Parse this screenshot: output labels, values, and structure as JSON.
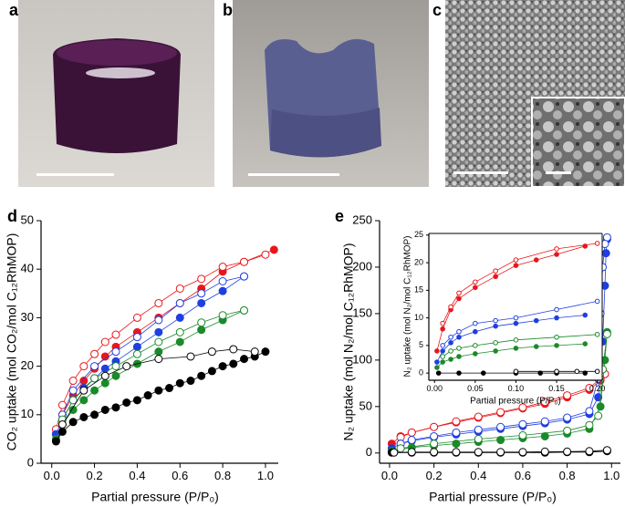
{
  "photos": {
    "labels": [
      "a",
      "b",
      "c"
    ]
  },
  "chart_data": [
    {
      "type": "line",
      "label": "d",
      "frame": "axes",
      "x_label": "Partial pressure (P/P₀)",
      "y_label": "CO₂ uptake (mol CO₂/mol C₁₂RhMOP)",
      "xlim": [
        -0.05,
        1.06
      ],
      "ylim": [
        0,
        50
      ],
      "xticks": [
        {
          "value": 0,
          "label": "0.0"
        },
        0.2,
        0.4,
        0.6,
        0.8,
        {
          "value": 1,
          "label": "1.0"
        }
      ],
      "yticks": [
        0,
        10,
        20,
        30,
        40,
        50
      ],
      "series": [
        {
          "color": "#e8161b",
          "marker": "filled",
          "x": [
            0.02,
            0.05,
            0.1,
            0.15,
            0.2,
            0.25,
            0.3,
            0.4,
            0.5,
            0.6,
            0.7,
            0.8,
            0.9,
            1.04
          ],
          "values": [
            6,
            10,
            14,
            17,
            19.5,
            22,
            24,
            27,
            30,
            33,
            36,
            39.5,
            41.5,
            44
          ]
        },
        {
          "color": "#e8161b",
          "marker": "open",
          "x": [
            1.0,
            0.9,
            0.8,
            0.7,
            0.6,
            0.5,
            0.4,
            0.3,
            0.25,
            0.2,
            0.15,
            0.1,
            0.05,
            0.02
          ],
          "values": [
            43,
            41.5,
            40.5,
            38,
            36,
            33,
            30,
            26.5,
            25,
            22.5,
            20,
            17,
            12,
            7
          ]
        },
        {
          "color": "#1f3fe0",
          "marker": "filled",
          "x": [
            0.02,
            0.05,
            0.1,
            0.15,
            0.2,
            0.25,
            0.3,
            0.4,
            0.5,
            0.6,
            0.7,
            0.8,
            0.9
          ],
          "values": [
            6,
            9,
            13,
            15.5,
            17.5,
            19.5,
            21,
            24,
            27,
            30,
            33,
            35.5,
            38.5
          ]
        },
        {
          "color": "#1f3fe0",
          "marker": "open",
          "x": [
            0.9,
            0.8,
            0.7,
            0.6,
            0.5,
            0.4,
            0.3,
            0.2,
            0.1,
            0.05
          ],
          "values": [
            38.5,
            37.5,
            35,
            33,
            29.5,
            26,
            23,
            20,
            15,
            10
          ]
        },
        {
          "color": "#1a8a2a",
          "marker": "filled",
          "x": [
            0.02,
            0.05,
            0.1,
            0.15,
            0.2,
            0.25,
            0.3,
            0.4,
            0.5,
            0.6,
            0.7,
            0.8,
            0.9
          ],
          "values": [
            5,
            8,
            11,
            13,
            15,
            16.5,
            18,
            20.5,
            23,
            25,
            27.5,
            29.5,
            31.5
          ]
        },
        {
          "color": "#1a8a2a",
          "marker": "open",
          "x": [
            0.9,
            0.8,
            0.7,
            0.6,
            0.5,
            0.4,
            0.3,
            0.2,
            0.1,
            0.05
          ],
          "values": [
            31.5,
            30.5,
            29,
            27,
            25,
            22.5,
            20,
            17.5,
            13,
            9
          ]
        },
        {
          "color": "#000000",
          "marker": "filled",
          "x": [
            0.02,
            0.05,
            0.1,
            0.15,
            0.2,
            0.25,
            0.3,
            0.35,
            0.4,
            0.45,
            0.5,
            0.55,
            0.6,
            0.65,
            0.7,
            0.75,
            0.8,
            0.85,
            0.9,
            0.95,
            1.0
          ],
          "values": [
            4.5,
            6.5,
            8.5,
            9.5,
            10,
            11,
            11.5,
            12.5,
            13,
            14,
            15,
            15.5,
            16.5,
            17,
            18,
            19,
            20,
            20.5,
            21.5,
            22,
            23
          ]
        },
        {
          "color": "#000000",
          "marker": "open",
          "x": [
            0.95,
            0.85,
            0.75,
            0.65,
            0.5,
            0.35,
            0.25,
            0.15,
            0.05
          ],
          "values": [
            23,
            23.5,
            23,
            22,
            21.5,
            20,
            18,
            15,
            8
          ]
        }
      ]
    },
    {
      "type": "line",
      "label": "e",
      "frame": "axes",
      "x_label": "Partial pressure (P/P₀)",
      "y_label": "N₂ uptake (mol N₂/mol C₁₂RhMOP)",
      "xlim": [
        -0.045,
        1.04
      ],
      "ylim": [
        -11,
        250
      ],
      "xticks": [
        {
          "value": 0,
          "label": "0.0"
        },
        0.2,
        0.4,
        0.6,
        0.8,
        {
          "value": 1,
          "label": "1.0"
        }
      ],
      "yticks": [
        0,
        50,
        100,
        150,
        200,
        250
      ],
      "series": [
        {
          "color": "#e8161b",
          "marker": "filled",
          "x": [
            0.01,
            0.05,
            0.1,
            0.2,
            0.3,
            0.4,
            0.5,
            0.6,
            0.7,
            0.8,
            0.9,
            0.95,
            0.97
          ],
          "values": [
            10,
            18,
            22,
            28,
            33,
            38,
            43,
            48,
            53,
            60,
            68,
            78,
            85
          ]
        },
        {
          "color": "#e8161b",
          "marker": "open",
          "x": [
            0.97,
            0.95,
            0.9,
            0.8,
            0.7,
            0.6,
            0.5,
            0.4,
            0.3,
            0.2,
            0.1,
            0.05
          ],
          "values": [
            85,
            80,
            70,
            62,
            55,
            49,
            44,
            39,
            34,
            28,
            22,
            17
          ]
        },
        {
          "color": "#1f3fe0",
          "marker": "filled",
          "x": [
            0.01,
            0.05,
            0.1,
            0.2,
            0.3,
            0.4,
            0.5,
            0.6,
            0.7,
            0.8,
            0.9,
            0.94,
            0.96,
            0.97,
            0.975,
            0.98
          ],
          "values": [
            5,
            10,
            13,
            17,
            20,
            23,
            26,
            29,
            32,
            36,
            42,
            60,
            120,
            180,
            215,
            230
          ]
        },
        {
          "color": "#1f3fe0",
          "marker": "open",
          "x": [
            0.98,
            0.97,
            0.96,
            0.95,
            0.94,
            0.9,
            0.8,
            0.7,
            0.6,
            0.5,
            0.4,
            0.3,
            0.2,
            0.1,
            0.05
          ],
          "values": [
            232,
            225,
            200,
            150,
            80,
            45,
            38,
            34,
            31,
            28,
            25,
            22,
            18,
            14,
            10
          ]
        },
        {
          "color": "#1a8a2a",
          "marker": "filled",
          "x": [
            0.01,
            0.1,
            0.2,
            0.3,
            0.4,
            0.5,
            0.6,
            0.7,
            0.8,
            0.9,
            0.95,
            0.97,
            0.98
          ],
          "values": [
            2,
            6,
            8,
            10,
            12,
            14,
            16,
            18,
            21,
            26,
            50,
            100,
            130
          ]
        },
        {
          "color": "#1a8a2a",
          "marker": "open",
          "x": [
            0.98,
            0.96,
            0.94,
            0.9,
            0.8,
            0.6,
            0.4,
            0.2,
            0.05
          ],
          "values": [
            128,
            90,
            40,
            30,
            24,
            19,
            15,
            10,
            5
          ]
        },
        {
          "color": "#000000",
          "marker": "filled",
          "x": [
            0.01,
            0.1,
            0.2,
            0.3,
            0.4,
            0.5,
            0.6,
            0.7,
            0.8,
            0.9,
            0.98
          ],
          "values": [
            0.5,
            0.5,
            0.5,
            0.5,
            0.5,
            0.5,
            0.5,
            0.5,
            1,
            1,
            2
          ]
        },
        {
          "color": "#000000",
          "marker": "open",
          "x": [
            0.98,
            0.9,
            0.8,
            0.7,
            0.6,
            0.5,
            0.4,
            0.3,
            0.2,
            0.1,
            0.02
          ],
          "values": [
            3,
            2,
            1.5,
            1.5,
            1,
            1,
            1,
            1,
            1,
            1,
            0.5
          ]
        }
      ]
    },
    {
      "type": "line",
      "frame": "box",
      "inset": true,
      "x_label": "Partial pressure (P/P₀)",
      "y_label": "N₂ uptake (mol N₂/mol C₁₂RhMOP)",
      "xlim": [
        -0.007,
        0.206
      ],
      "ylim": [
        -1.3,
        25.3
      ],
      "xticks": [
        {
          "value": 0,
          "label": "0.00"
        },
        0.05,
        {
          "value": 0.1,
          "label": "0.10"
        },
        0.15,
        {
          "value": 0.2,
          "label": "0.20"
        }
      ],
      "yticks": [
        0,
        5,
        10,
        15,
        20,
        25
      ],
      "series": [
        {
          "color": "#e8161b",
          "marker": "filled",
          "x": [
            0.003,
            0.01,
            0.02,
            0.03,
            0.05,
            0.075,
            0.1,
            0.125,
            0.15,
            0.185
          ],
          "values": [
            4,
            8,
            11.5,
            13.5,
            15.5,
            17.5,
            19.5,
            20.5,
            21.5,
            23
          ]
        },
        {
          "color": "#e8161b",
          "marker": "open",
          "x": [
            0.2,
            0.15,
            0.1,
            0.075,
            0.05,
            0.03,
            0.02,
            0.01
          ],
          "values": [
            23.5,
            22.5,
            20.5,
            18.5,
            16.5,
            14.5,
            12,
            9
          ]
        },
        {
          "color": "#1f3fe0",
          "marker": "filled",
          "x": [
            0.003,
            0.01,
            0.02,
            0.03,
            0.05,
            0.075,
            0.1,
            0.125,
            0.15,
            0.185
          ],
          "values": [
            2,
            4,
            5.5,
            6.5,
            7.5,
            8.5,
            9,
            9.5,
            10,
            10.5
          ]
        },
        {
          "color": "#1f3fe0",
          "marker": "open",
          "x": [
            0.2,
            0.15,
            0.1,
            0.075,
            0.05,
            0.03,
            0.02,
            0.01
          ],
          "values": [
            13,
            11.5,
            10,
            9.5,
            9,
            7.5,
            6.5,
            5
          ]
        },
        {
          "color": "#1a8a2a",
          "marker": "filled",
          "x": [
            0.003,
            0.01,
            0.02,
            0.03,
            0.05,
            0.075,
            0.1,
            0.125,
            0.15,
            0.185
          ],
          "values": [
            1,
            2,
            2.5,
            3,
            3.5,
            4,
            4.5,
            4.8,
            5,
            5.3
          ]
        },
        {
          "color": "#1a8a2a",
          "marker": "open",
          "x": [
            0.2,
            0.15,
            0.1,
            0.075,
            0.05,
            0.03,
            0.02,
            0.01
          ],
          "values": [
            7,
            6.5,
            6,
            5.5,
            5,
            4.5,
            4,
            3
          ]
        },
        {
          "color": "#000000",
          "marker": "filled",
          "x": [
            0.005,
            0.03,
            0.06,
            0.1,
            0.13,
            0.15,
            0.185
          ],
          "values": [
            0,
            0,
            0,
            0,
            0,
            0,
            0
          ]
        },
        {
          "color": "#000000",
          "marker": "open",
          "x": [
            0.2,
            0.175,
            0.15,
            0.1
          ],
          "values": [
            0.3,
            0.3,
            0.3,
            0.3
          ]
        }
      ]
    }
  ]
}
